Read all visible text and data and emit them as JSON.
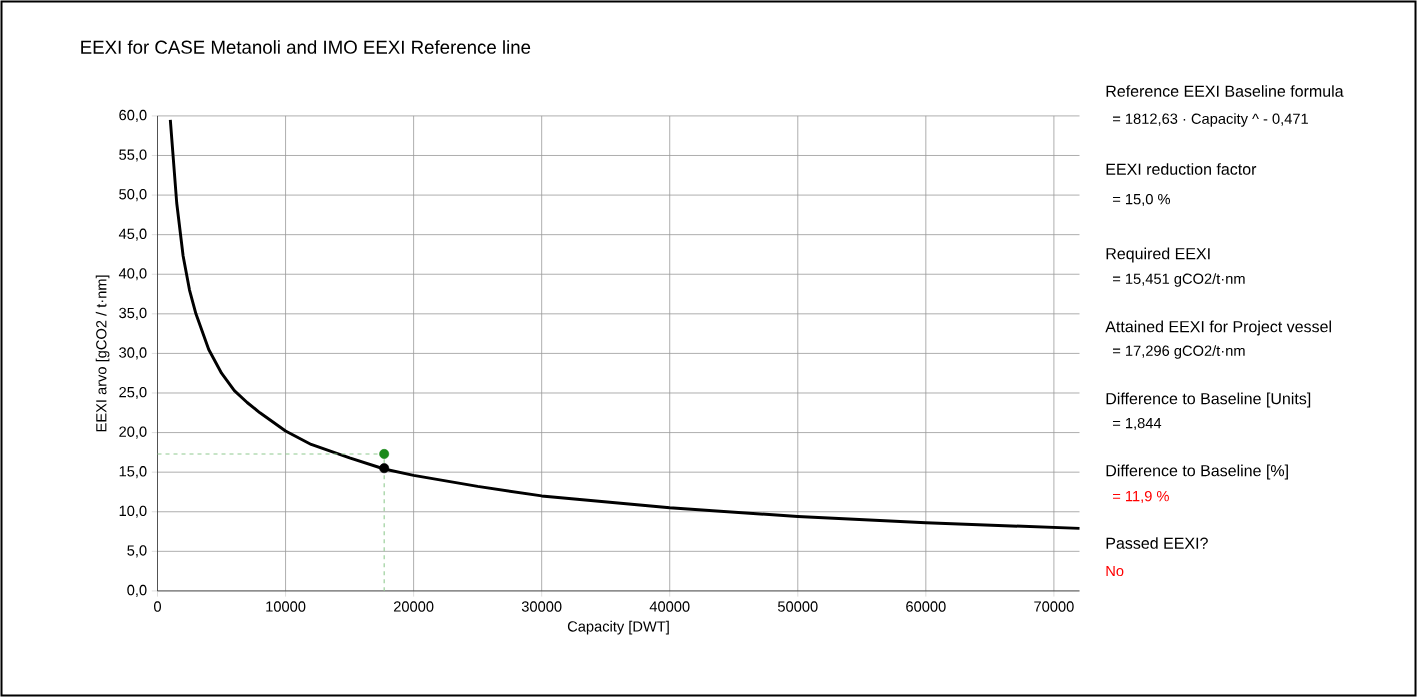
{
  "chart_data": {
    "type": "line",
    "title": "EEXI for CASE Metanoli and IMO EEXI Reference line",
    "xlabel": "Capacity [DWT]",
    "ylabel": "EEXI arvo [gCO2 / t·nm]",
    "series": [
      {
        "color": "#000000",
        "x": [
          1000,
          1500,
          2000,
          2500,
          3000,
          4000,
          5000,
          6000,
          7000,
          8000,
          10000,
          12000,
          15000,
          17700,
          20000,
          25000,
          30000,
          40000,
          50000,
          60000,
          72000
        ],
        "values": [
          59.5,
          49,
          42.3,
          38,
          35,
          30.5,
          27.5,
          25.3,
          23.8,
          22.5,
          20.2,
          18.5,
          16.8,
          15.4,
          14.6,
          13.2,
          12.0,
          10.5,
          9.4,
          8.6,
          7.9
        ]
      },
      {
        "type": "line",
        "color": "#8fc98f",
        "line_style": "dashed",
        "marker": "none",
        "x": [
          0,
          17700,
          17700
        ],
        "values": [
          17.3,
          17.3,
          0
        ]
      },
      {
        "type": "scatter",
        "color": "#1a8a1a",
        "marker": "circle",
        "x": [
          17700
        ],
        "values": [
          17.3
        ]
      },
      {
        "type": "scatter",
        "color": "#000000",
        "marker": "circle",
        "x": [
          17700
        ],
        "values": [
          15.5
        ]
      }
    ],
    "xlim": [
      0,
      72000
    ],
    "ylim": [
      0,
      60
    ],
    "xticks": [
      0,
      10000,
      20000,
      30000,
      40000,
      50000,
      60000,
      70000
    ],
    "yticks": [
      {
        "value": 0,
        "label": "0,0"
      },
      {
        "value": 5,
        "label": "5,0"
      },
      {
        "value": 10,
        "label": "10,0"
      },
      {
        "value": 15,
        "label": "15,0"
      },
      {
        "value": 20,
        "label": "20,0"
      },
      {
        "value": 25,
        "label": "25,0"
      },
      {
        "value": 30,
        "label": "30,0"
      },
      {
        "value": 35,
        "label": "35,0"
      },
      {
        "value": 40,
        "label": "40,0"
      },
      {
        "value": 45,
        "label": "45,0"
      },
      {
        "value": 50,
        "label": "50,0"
      },
      {
        "value": 55,
        "label": "55,0"
      },
      {
        "value": 60,
        "label": "60,0"
      }
    ],
    "grid": true,
    "annotations": [
      "Reference EEXI Baseline formula",
      "= 1812,63 · Capacity ^ - 0,471",
      "EEXI reduction factor",
      "= 15,0 %",
      "Required EEXI",
      "= 15,451 gCO2/t·nm",
      "Attained EEXI for Project vessel",
      "= 17,296 gCO2/t·nm",
      "Difference to Baseline [Units]",
      "= 1,844",
      "Difference to Baseline [%]",
      "= 11,9 %",
      "Passed EEXI?",
      "No"
    ]
  }
}
